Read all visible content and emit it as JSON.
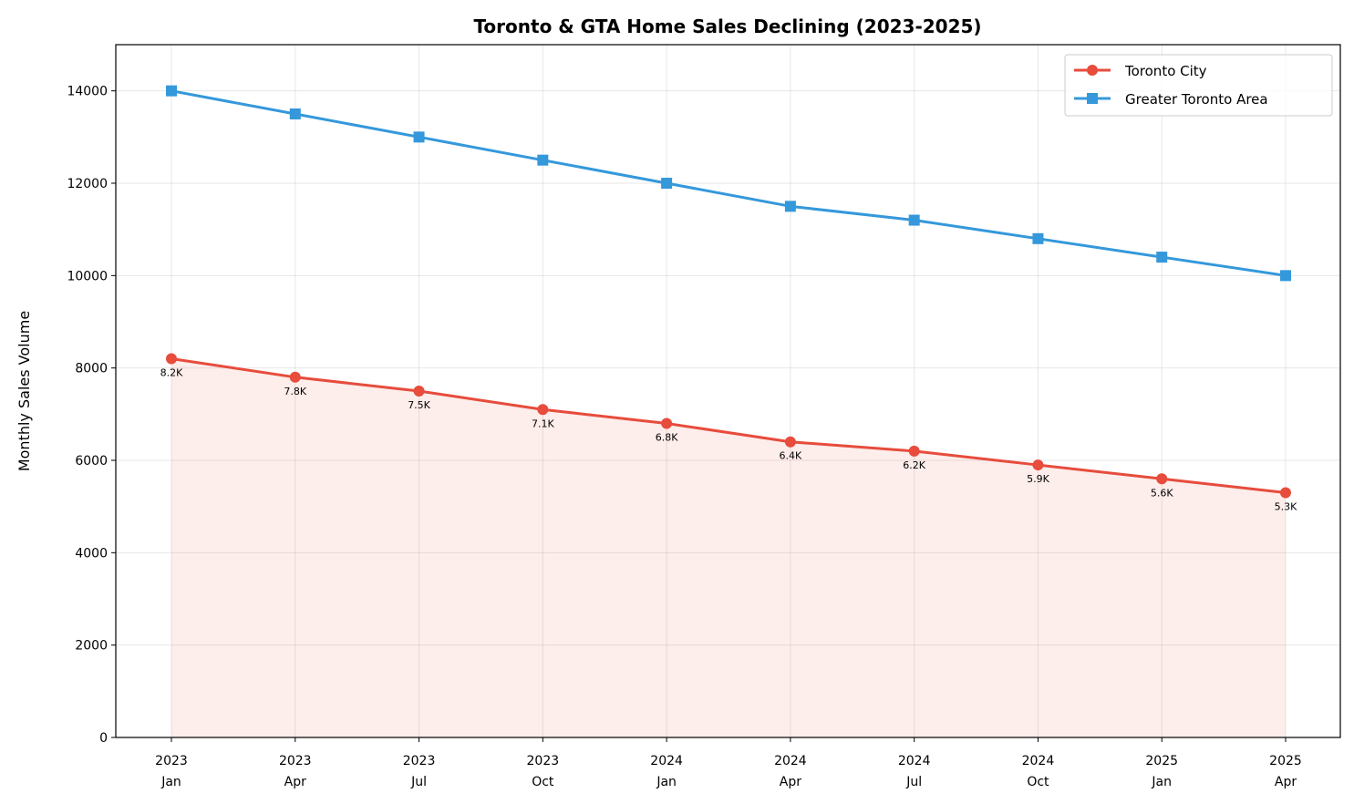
{
  "chart_data": {
    "type": "line",
    "title": "Toronto & GTA Home Sales Declining (2023-2025)",
    "xlabel": "",
    "ylabel": "Monthly Sales Volume",
    "categories": [
      {
        "year": "2023",
        "month": "Jan"
      },
      {
        "year": "2023",
        "month": "Apr"
      },
      {
        "year": "2023",
        "month": "Jul"
      },
      {
        "year": "2023",
        "month": "Oct"
      },
      {
        "year": "2024",
        "month": "Jan"
      },
      {
        "year": "2024",
        "month": "Apr"
      },
      {
        "year": "2024",
        "month": "Jul"
      },
      {
        "year": "2024",
        "month": "Oct"
      },
      {
        "year": "2025",
        "month": "Jan"
      },
      {
        "year": "2025",
        "month": "Apr"
      }
    ],
    "ylim": [
      0,
      15000
    ],
    "yticks": [
      0,
      2000,
      4000,
      6000,
      8000,
      10000,
      12000,
      14000
    ],
    "grid": true,
    "legend_position": "top-right",
    "series": [
      {
        "name": "Toronto City",
        "color": "#e74c3c",
        "marker": "circle",
        "fill_area": true,
        "values": [
          8200,
          7800,
          7500,
          7100,
          6800,
          6400,
          6200,
          5900,
          5600,
          5300
        ],
        "data_labels": [
          "8.2K",
          "7.8K",
          "7.5K",
          "7.1K",
          "6.8K",
          "6.4K",
          "6.2K",
          "5.9K",
          "5.6K",
          "5.3K"
        ]
      },
      {
        "name": "Greater Toronto Area",
        "color": "#3498db",
        "marker": "square",
        "fill_area": false,
        "values": [
          14000,
          13500,
          13000,
          12500,
          12000,
          11500,
          11200,
          10800,
          10400,
          10000
        ]
      }
    ]
  }
}
